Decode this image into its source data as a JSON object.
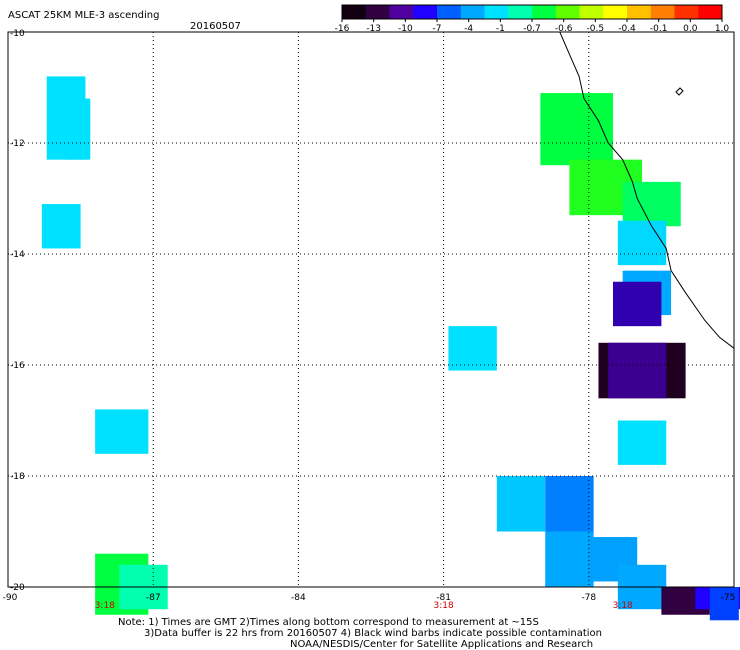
{
  "header": {
    "title": "ASCAT 25KM MLE-3 ascending",
    "date": "20160507"
  },
  "colorbar": {
    "labels": [
      "-16",
      "-13",
      "-10",
      "-7",
      "-4",
      "-1",
      "-0.7",
      "-0.6",
      "-0.5",
      "-0.4",
      "-0.1",
      "0.0",
      "1.0"
    ],
    "colors": [
      "#100010",
      "#300040",
      "#5000a0",
      "#2000ff",
      "#0060ff",
      "#00a8ff",
      "#00e0ff",
      "#00ffb0",
      "#00ff40",
      "#60ff00",
      "#c0ff00",
      "#ffff00",
      "#ffc000",
      "#ff8000",
      "#ff3000",
      "#ff0000"
    ]
  },
  "map": {
    "lon_range": [
      -90,
      -75
    ],
    "lat_range": [
      -20,
      -10
    ],
    "lon_ticks": [
      "-90",
      "-87",
      "-84",
      "-81",
      "-78",
      "-75"
    ],
    "lat_ticks": [
      "-10",
      "-12",
      "-14",
      "-16",
      "-18",
      "-20"
    ],
    "time_labels": [
      {
        "lon": -88.0,
        "text": "3:18"
      },
      {
        "lon": -81.0,
        "text": "3:18"
      },
      {
        "lon": -77.3,
        "text": "3:18"
      }
    ],
    "cells": [
      {
        "lon": -89.2,
        "lat": -10.8,
        "w": 0.8,
        "h": 1.5,
        "color": "#00e0ff"
      },
      {
        "lon": -88.8,
        "lat": -11.2,
        "w": 0.5,
        "h": 1.1,
        "color": "#00e0ff"
      },
      {
        "lon": -89.3,
        "lat": -13.1,
        "w": 0.8,
        "h": 0.8,
        "color": "#00e0ff"
      },
      {
        "lon": -88.2,
        "lat": -16.8,
        "w": 1.1,
        "h": 0.8,
        "color": "#00e0ff"
      },
      {
        "lon": -88.2,
        "lat": -19.4,
        "w": 1.1,
        "h": 1.1,
        "color": "#00ff40"
      },
      {
        "lon": -87.7,
        "lat": -19.6,
        "w": 1.0,
        "h": 0.8,
        "color": "#00ffb0"
      },
      {
        "lon": -80.9,
        "lat": -15.3,
        "w": 1.0,
        "h": 0.8,
        "color": "#00e0ff"
      },
      {
        "lon": -79.9,
        "lat": -18.0,
        "w": 1.0,
        "h": 1.0,
        "color": "#00c8ff"
      },
      {
        "lon": -78.9,
        "lat": -18.0,
        "w": 1.0,
        "h": 1.0,
        "color": "#0080ff"
      },
      {
        "lon": -78.9,
        "lat": -19.0,
        "w": 1.0,
        "h": 1.0,
        "color": "#00a8ff"
      },
      {
        "lon": -78.0,
        "lat": -19.1,
        "w": 1.0,
        "h": 0.8,
        "color": "#00a0ff"
      },
      {
        "lon": -77.4,
        "lat": -19.6,
        "w": 1.0,
        "h": 0.8,
        "color": "#00a8ff"
      },
      {
        "lon": -79.0,
        "lat": -11.1,
        "w": 1.5,
        "h": 1.3,
        "color": "#00ff40"
      },
      {
        "lon": -78.4,
        "lat": -12.3,
        "w": 1.5,
        "h": 1.0,
        "color": "#20ff20"
      },
      {
        "lon": -77.3,
        "lat": -12.7,
        "w": 1.2,
        "h": 0.8,
        "color": "#00ff60"
      },
      {
        "lon": -77.4,
        "lat": -13.4,
        "w": 1.0,
        "h": 0.8,
        "color": "#00d8ff"
      },
      {
        "lon": -77.3,
        "lat": -14.3,
        "w": 1.0,
        "h": 0.8,
        "color": "#00a8ff"
      },
      {
        "lon": -77.5,
        "lat": -14.5,
        "w": 1.0,
        "h": 0.8,
        "color": "#3000b0"
      },
      {
        "lon": -77.8,
        "lat": -15.6,
        "w": 1.8,
        "h": 1.0,
        "color": "#200020"
      },
      {
        "lon": -77.6,
        "lat": -15.6,
        "w": 1.2,
        "h": 1.0,
        "color": "#3c0090"
      },
      {
        "lon": -77.4,
        "lat": -17.0,
        "w": 1.0,
        "h": 0.8,
        "color": "#00e0ff"
      },
      {
        "lon": -76.5,
        "lat": -20.0,
        "w": 1.0,
        "h": 0.5,
        "color": "#300040"
      },
      {
        "lon": -75.8,
        "lat": -20.0,
        "w": 1.0,
        "h": 0.4,
        "color": "#2000ff"
      },
      {
        "lon": -75.5,
        "lat": -20.0,
        "w": 0.6,
        "h": 0.6,
        "color": "#0040ff"
      }
    ],
    "coastline": [
      [
        -78.6,
        -10.0
      ],
      [
        -78.4,
        -10.4
      ],
      [
        -78.2,
        -10.8
      ],
      [
        -78.1,
        -11.2
      ],
      [
        -77.8,
        -11.6
      ],
      [
        -77.6,
        -12.0
      ],
      [
        -77.3,
        -12.3
      ],
      [
        -77.1,
        -12.7
      ],
      [
        -77.0,
        -13.0
      ],
      [
        -76.7,
        -13.5
      ],
      [
        -76.4,
        -13.9
      ],
      [
        -76.3,
        -14.3
      ],
      [
        -76.0,
        -14.7
      ],
      [
        -75.6,
        -15.2
      ],
      [
        -75.3,
        -15.5
      ],
      [
        -75.0,
        -15.7
      ]
    ]
  },
  "notes": {
    "line1": "Note: 1) Times are GMT 2)Times along bottom correspond to measurement at ~15S",
    "line2": "3)Data buffer is 22 hrs from 20160507 4) Black wind barbs indicate possible contamination",
    "line3": "NOAA/NESDIS/Center for Satellite Applications and Research"
  }
}
